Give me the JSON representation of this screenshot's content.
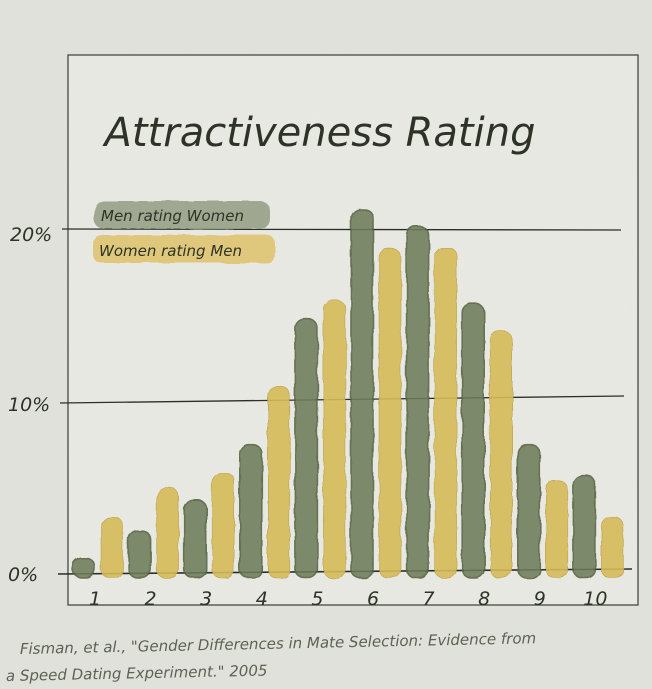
{
  "chart_data": {
    "type": "bar",
    "title": "Attractiveness Rating",
    "categories": [
      "1",
      "2",
      "3",
      "4",
      "5",
      "6",
      "7",
      "8",
      "9",
      "10"
    ],
    "series": [
      {
        "name": "Men rating Women",
        "color": "#6f7d5a",
        "values": [
          0.8,
          2.4,
          4.2,
          7.4,
          14.7,
          21.1,
          20.1,
          15.6,
          7.4,
          5.6
        ]
      },
      {
        "name": "Women rating Men",
        "color": "#d5bb5a",
        "values": [
          3.2,
          4.9,
          5.8,
          10.8,
          15.8,
          18.8,
          18.9,
          14.0,
          5.3,
          3.2
        ]
      }
    ],
    "yticks": [
      "0%",
      "10%",
      "20%"
    ],
    "ylim": [
      0,
      23
    ],
    "grid": true,
    "legend_position": "top-left"
  },
  "citation": {
    "line1": "Fisman, et al., \"Gender Differences in Mate Selection: Evidence from",
    "line2": "a Speed Dating Experiment.\" 2005"
  }
}
